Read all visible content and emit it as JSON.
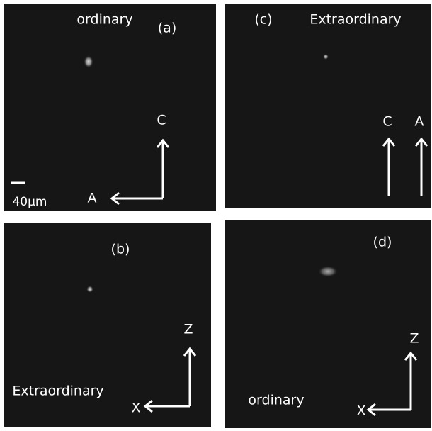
{
  "panels": [
    {
      "label": "(a)",
      "caption": "ordinary",
      "axis_vertical": "C",
      "axis_horizontal": "A",
      "scale_bar": "40µm"
    },
    {
      "label": "(c)",
      "caption": "Extraordinary",
      "axis_left": "C",
      "axis_right": "A"
    },
    {
      "label": "(b)",
      "caption": "Extraordinary",
      "axis_vertical": "Z",
      "axis_horizontal": "X"
    },
    {
      "label": "(d)",
      "caption": "ordinary",
      "axis_vertical": "Z",
      "axis_horizontal": "X"
    }
  ]
}
